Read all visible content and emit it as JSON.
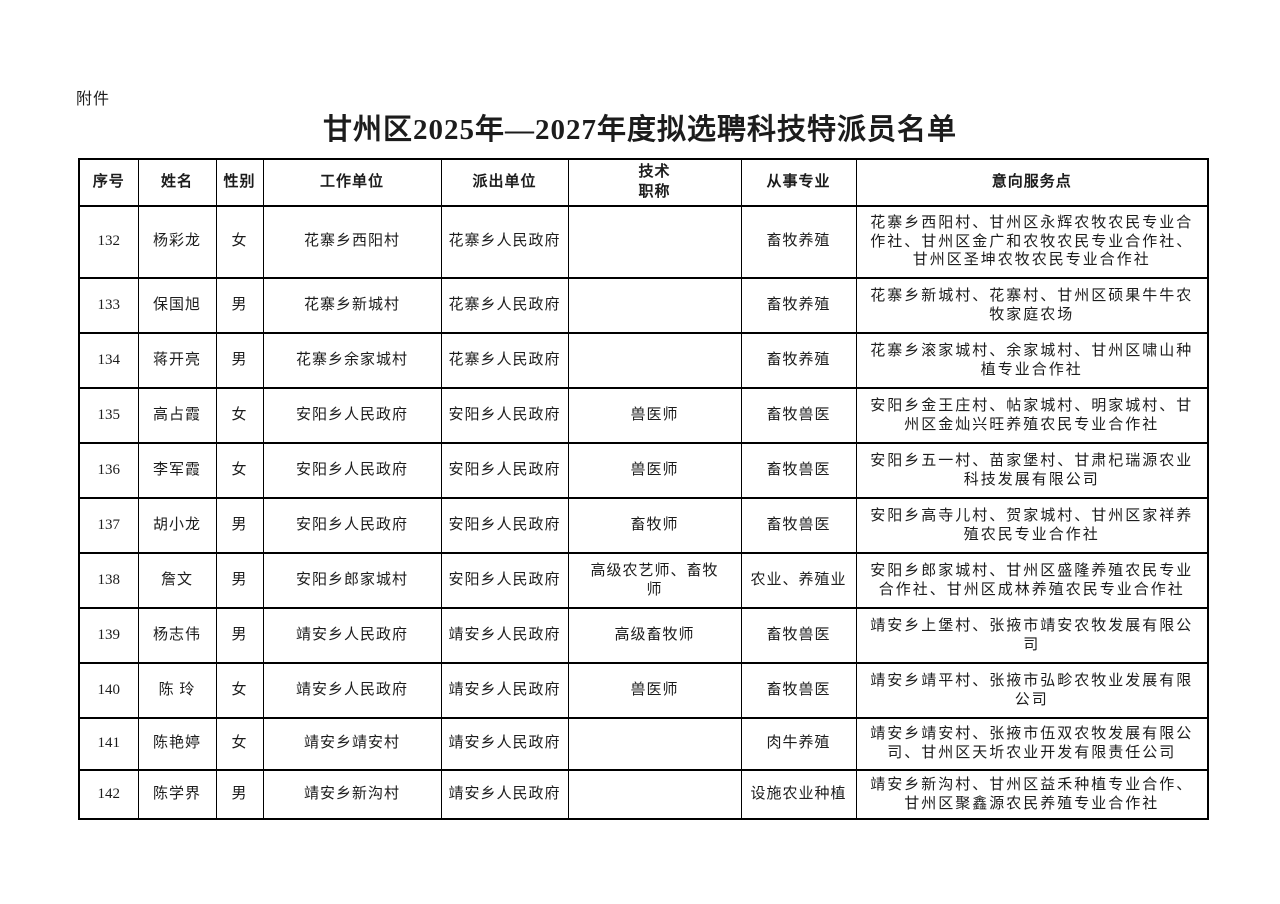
{
  "page": {
    "attachment_label": "附件",
    "title": "甘州区2025年—2027年度拟选聘科技特派员名单",
    "background_color": "#ffffff",
    "text_color": "#1c1c1c",
    "border_color": "#000000"
  },
  "table": {
    "columns": [
      "序号",
      "姓名",
      "性别",
      "工作单位",
      "派出单位",
      "技术职称",
      "从事专业",
      "意向服务点"
    ],
    "rows": [
      {
        "no": "132",
        "name": "杨彩龙",
        "gender": "女",
        "work_unit": "花寨乡西阳村",
        "dispatch_unit": "花寨乡人民政府",
        "tech_title": "",
        "profession": "畜牧养殖",
        "service_points": "花寨乡西阳村、甘州区永辉农牧农民专业合作社、甘州区金广和农牧农民专业合作社、甘州区圣坤农牧农民专业合作社"
      },
      {
        "no": "133",
        "name": "保国旭",
        "gender": "男",
        "work_unit": "花寨乡新城村",
        "dispatch_unit": "花寨乡人民政府",
        "tech_title": "",
        "profession": "畜牧养殖",
        "service_points": "花寨乡新城村、花寨村、甘州区硕果牛牛农牧家庭农场"
      },
      {
        "no": "134",
        "name": "蒋开亮",
        "gender": "男",
        "work_unit": "花寨乡余家城村",
        "dispatch_unit": "花寨乡人民政府",
        "tech_title": "",
        "profession": "畜牧养殖",
        "service_points": "花寨乡滚家城村、余家城村、甘州区啸山种植专业合作社"
      },
      {
        "no": "135",
        "name": "高占霞",
        "gender": "女",
        "work_unit": "安阳乡人民政府",
        "dispatch_unit": "安阳乡人民政府",
        "tech_title": "兽医师",
        "profession": "畜牧兽医",
        "service_points": "安阳乡金王庄村、帖家城村、明家城村、甘州区金灿兴旺养殖农民专业合作社"
      },
      {
        "no": "136",
        "name": "李军霞",
        "gender": "女",
        "work_unit": "安阳乡人民政府",
        "dispatch_unit": "安阳乡人民政府",
        "tech_title": "兽医师",
        "profession": "畜牧兽医",
        "service_points": "安阳乡五一村、苗家堡村、甘肃杞瑞源农业科技发展有限公司"
      },
      {
        "no": "137",
        "name": "胡小龙",
        "gender": "男",
        "work_unit": "安阳乡人民政府",
        "dispatch_unit": "安阳乡人民政府",
        "tech_title": "畜牧师",
        "profession": "畜牧兽医",
        "service_points": "安阳乡高寺儿村、贺家城村、甘州区家祥养殖农民专业合作社"
      },
      {
        "no": "138",
        "name": "詹文",
        "gender": "男",
        "work_unit": "安阳乡郎家城村",
        "dispatch_unit": "安阳乡人民政府",
        "tech_title": "高级农艺师、畜牧师",
        "profession": "农业、养殖业",
        "service_points": "安阳乡郎家城村、甘州区盛隆养殖农民专业合作社、甘州区成林养殖农民专业合作社"
      },
      {
        "no": "139",
        "name": "杨志伟",
        "gender": "男",
        "work_unit": "靖安乡人民政府",
        "dispatch_unit": "靖安乡人民政府",
        "tech_title": "高级畜牧师",
        "profession": "畜牧兽医",
        "service_points": "靖安乡上堡村、张掖市靖安农牧发展有限公司"
      },
      {
        "no": "140",
        "name": "陈 玲",
        "gender": "女",
        "work_unit": "靖安乡人民政府",
        "dispatch_unit": "靖安乡人民政府",
        "tech_title": "兽医师",
        "profession": "畜牧兽医",
        "service_points": "靖安乡靖平村、张掖市弘畛农牧业发展有限公司"
      },
      {
        "no": "141",
        "name": "陈艳婷",
        "gender": "女",
        "work_unit": "靖安乡靖安村",
        "dispatch_unit": "靖安乡人民政府",
        "tech_title": "",
        "profession": "肉牛养殖",
        "service_points": "靖安乡靖安村、张掖市伍双农牧发展有限公司、甘州区天圻农业开发有限责任公司"
      },
      {
        "no": "142",
        "name": "陈学界",
        "gender": "男",
        "work_unit": "靖安乡新沟村",
        "dispatch_unit": "靖安乡人民政府",
        "tech_title": "",
        "profession": "设施农业种植",
        "service_points": "靖安乡新沟村、甘州区益禾种植专业合作、甘州区聚鑫源农民养殖专业合作社"
      }
    ]
  }
}
